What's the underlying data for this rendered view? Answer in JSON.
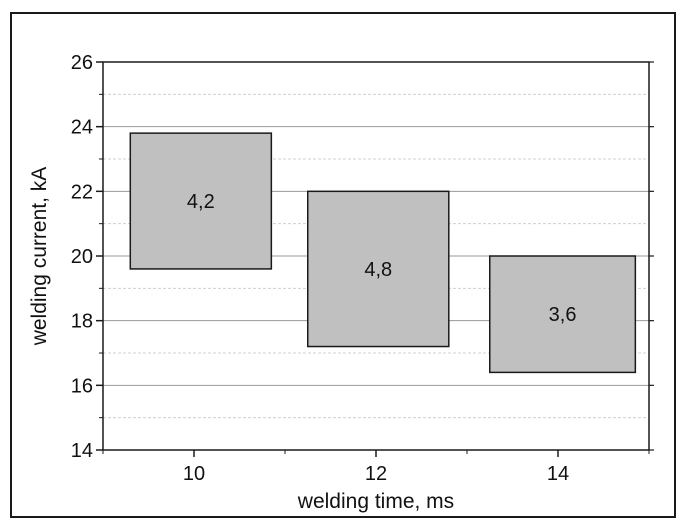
{
  "chart_data": {
    "type": "box",
    "xlabel": "welding time, ms",
    "ylabel": "welding current, kA",
    "xlim": [
      9,
      15
    ],
    "ylim": [
      14,
      26
    ],
    "xticks": [
      "10",
      "12",
      "14"
    ],
    "xtick_values": [
      10,
      12,
      14
    ],
    "yticks": [
      "14",
      "16",
      "18",
      "20",
      "22",
      "24",
      "26"
    ],
    "ytick_values": [
      14,
      16,
      18,
      20,
      22,
      24,
      26
    ],
    "grid": true,
    "boxes": [
      {
        "x0": 9.3,
        "x1": 10.85,
        "y0": 19.6,
        "y1": 23.8,
        "label": "4,2"
      },
      {
        "x0": 11.25,
        "x1": 12.8,
        "y0": 17.2,
        "y1": 22.0,
        "label": "4,8"
      },
      {
        "x0": 13.25,
        "x1": 14.85,
        "y0": 16.4,
        "y1": 20.0,
        "label": "3,6"
      }
    ],
    "colors": {
      "box_fill": "#c0c0c0",
      "box_stroke": "#1a1a1a",
      "grid": "#9a9a9a",
      "minor_grid": "#d0d0d0"
    }
  }
}
